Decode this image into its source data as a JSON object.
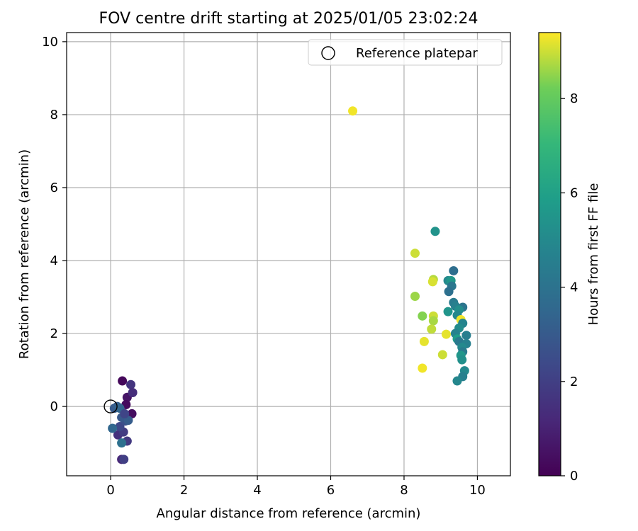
{
  "chart_data": {
    "type": "scatter",
    "title": "FOV centre drift starting at 2025/01/05 23:02:24",
    "xlabel": "Angular distance from reference (arcmin)",
    "ylabel": "Rotation from reference (arcmin)",
    "xlim": [
      -1.2,
      10.9
    ],
    "ylim": [
      -1.9,
      10.25
    ],
    "xticks": [
      0,
      2,
      4,
      6,
      8,
      10
    ],
    "yticks": [
      0,
      2,
      4,
      6,
      8,
      10
    ],
    "grid": true,
    "legend": {
      "label": "Reference platepar",
      "placement": "top-right"
    },
    "colorbar": {
      "label": "Hours from first FF file",
      "colormap": "viridis",
      "range": [
        0,
        9.4
      ],
      "ticks": [
        0,
        2,
        4,
        6,
        8
      ]
    },
    "reference_point": {
      "x": 0,
      "y": 0
    },
    "points": [
      {
        "x": 0.32,
        "y": 0.7,
        "c": 0.2
      },
      {
        "x": 0.45,
        "y": 0.25,
        "c": 0.6
      },
      {
        "x": 0.42,
        "y": 0.05,
        "c": 0.3
      },
      {
        "x": 0.58,
        "y": -0.2,
        "c": 0.4
      },
      {
        "x": 0.55,
        "y": 0.6,
        "c": 1.6
      },
      {
        "x": 0.6,
        "y": 0.38,
        "c": 1.4
      },
      {
        "x": 0.45,
        "y": -0.95,
        "c": 1.8
      },
      {
        "x": 0.3,
        "y": -1.45,
        "c": 1.2
      },
      {
        "x": 0.36,
        "y": -1.45,
        "c": 2.0
      },
      {
        "x": 0.2,
        "y": -0.78,
        "c": 1.5
      },
      {
        "x": 0.35,
        "y": -0.7,
        "c": 1.9
      },
      {
        "x": 0.25,
        "y": -0.55,
        "c": 2.3
      },
      {
        "x": 0.4,
        "y": -0.4,
        "c": 2.6
      },
      {
        "x": 0.3,
        "y": -0.3,
        "c": 2.9
      },
      {
        "x": 0.48,
        "y": -0.38,
        "c": 3.1
      },
      {
        "x": 0.1,
        "y": -0.05,
        "c": 3.0
      },
      {
        "x": 0.18,
        "y": 0.0,
        "c": 3.2
      },
      {
        "x": 0.25,
        "y": -0.05,
        "c": 3.4
      },
      {
        "x": 0.05,
        "y": -0.6,
        "c": 3.5
      },
      {
        "x": 0.3,
        "y": -1.0,
        "c": 3.9
      },
      {
        "x": 0.38,
        "y": -0.2,
        "c": 2.2
      },
      {
        "x": 6.6,
        "y": 8.1,
        "c": 9.3
      },
      {
        "x": 8.85,
        "y": 4.8,
        "c": 5.4
      },
      {
        "x": 8.3,
        "y": 4.2,
        "c": 9.0
      },
      {
        "x": 9.35,
        "y": 3.72,
        "c": 3.8
      },
      {
        "x": 8.8,
        "y": 3.48,
        "c": 8.8
      },
      {
        "x": 8.78,
        "y": 3.42,
        "c": 9.1
      },
      {
        "x": 9.2,
        "y": 3.45,
        "c": 5.0
      },
      {
        "x": 9.28,
        "y": 3.45,
        "c": 5.6
      },
      {
        "x": 9.3,
        "y": 3.3,
        "c": 4.2
      },
      {
        "x": 9.22,
        "y": 3.15,
        "c": 3.9
      },
      {
        "x": 8.3,
        "y": 3.02,
        "c": 8.6
      },
      {
        "x": 9.35,
        "y": 2.85,
        "c": 4.4
      },
      {
        "x": 9.4,
        "y": 2.75,
        "c": 4.6
      },
      {
        "x": 9.6,
        "y": 2.72,
        "c": 4.1
      },
      {
        "x": 9.5,
        "y": 2.65,
        "c": 5.2
      },
      {
        "x": 9.2,
        "y": 2.6,
        "c": 5.5
      },
      {
        "x": 9.45,
        "y": 2.5,
        "c": 4.9
      },
      {
        "x": 8.5,
        "y": 2.48,
        "c": 8.4
      },
      {
        "x": 8.8,
        "y": 2.48,
        "c": 9.0
      },
      {
        "x": 8.8,
        "y": 2.35,
        "c": 8.7
      },
      {
        "x": 9.55,
        "y": 2.38,
        "c": 9.3
      },
      {
        "x": 9.6,
        "y": 2.28,
        "c": 4.8
      },
      {
        "x": 8.75,
        "y": 2.12,
        "c": 8.9
      },
      {
        "x": 9.5,
        "y": 2.15,
        "c": 5.1
      },
      {
        "x": 9.4,
        "y": 2.0,
        "c": 4.7
      },
      {
        "x": 9.15,
        "y": 1.98,
        "c": 9.2
      },
      {
        "x": 9.7,
        "y": 1.95,
        "c": 4.5
      },
      {
        "x": 9.45,
        "y": 1.85,
        "c": 5.8
      },
      {
        "x": 9.5,
        "y": 1.78,
        "c": 4.3
      },
      {
        "x": 8.55,
        "y": 1.78,
        "c": 9.2
      },
      {
        "x": 9.7,
        "y": 1.72,
        "c": 4.6
      },
      {
        "x": 9.58,
        "y": 1.62,
        "c": 5.0
      },
      {
        "x": 9.6,
        "y": 1.5,
        "c": 4.4
      },
      {
        "x": 9.05,
        "y": 1.42,
        "c": 9.0
      },
      {
        "x": 9.55,
        "y": 1.4,
        "c": 5.6
      },
      {
        "x": 9.58,
        "y": 1.28,
        "c": 5.3
      },
      {
        "x": 8.5,
        "y": 1.05,
        "c": 9.3
      },
      {
        "x": 9.65,
        "y": 0.98,
        "c": 5.0
      },
      {
        "x": 9.6,
        "y": 0.82,
        "c": 4.6
      },
      {
        "x": 9.45,
        "y": 0.7,
        "c": 4.9
      }
    ]
  }
}
